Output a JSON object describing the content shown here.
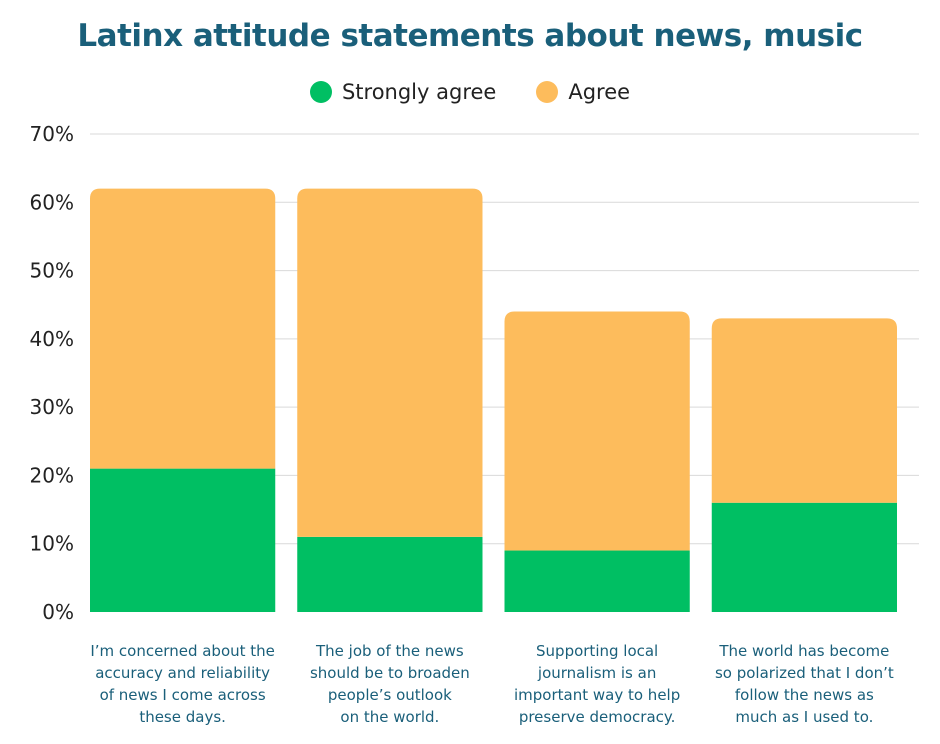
{
  "chart_data": {
    "type": "bar",
    "stacked": true,
    "title": "Latinx attitude statements about news, music",
    "categories": [
      "I’m concerned about the\naccuracy and reliability\nof news I come across\nthese days.",
      "The job of the news\nshould be to broaden\npeople’s outlook\non the world.",
      "Supporting local\njournalism is an\nimportant way to help\npreserve democracy.",
      "The world has become\nso polarized that I don’t\nfollow the news as\nmuch as I used to."
    ],
    "series": [
      {
        "name": "Strongly agree",
        "values": [
          21,
          11,
          9,
          16
        ],
        "color": "#00BF63"
      },
      {
        "name": "Agree",
        "values": [
          41,
          51,
          35,
          27
        ],
        "color": "#FDBC5C"
      }
    ],
    "yticks": [
      "0%",
      "10%",
      "20%",
      "30%",
      "40%",
      "50%",
      "60%",
      "70%"
    ],
    "ylim": [
      0,
      70
    ],
    "xlabel": "",
    "ylabel": "",
    "legend": "top-center",
    "grid": true
  },
  "colors": {
    "title": "#1A5F7A",
    "category_label": "#1A5F7A",
    "grid": "#D9D9D9"
  }
}
